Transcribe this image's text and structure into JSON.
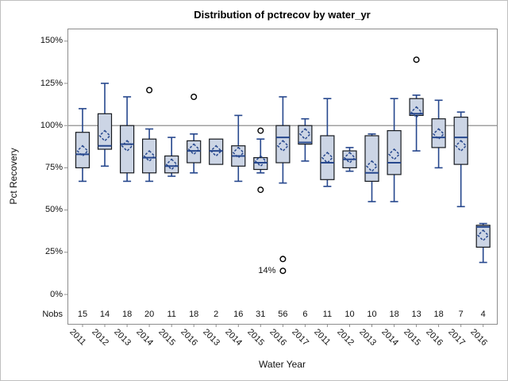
{
  "title": "Distribution of pctrecov by water_yr",
  "axes": {
    "y_label": "Pct Recovery",
    "x_label": "Water Year",
    "y_ticks": [
      "0%",
      "25%",
      "50%",
      "75%",
      "100%",
      "125%",
      "150%"
    ],
    "nobs_header": "Nobs"
  },
  "annotation_label": "14%",
  "colors": {
    "box_fill": "#ccd5e5",
    "box_border": "#16191e",
    "line_blue": "#26478d",
    "reference_line": "#a0a0a0",
    "frame_border": "#8d8d8d",
    "tick_color": "#8d8d8d",
    "outlier_stroke": "#000000"
  },
  "chart_data": {
    "type": "boxplot",
    "title": "Distribution of pctrecov by water_yr",
    "xlabel": "Water Year",
    "ylabel": "Pct Recovery",
    "ylim": [
      0,
      150
    ],
    "y_tick_values": [
      0,
      25,
      50,
      75,
      100,
      125,
      150
    ],
    "y_tick_labels": [
      "0%",
      "25%",
      "50%",
      "75%",
      "100%",
      "125%",
      "150%"
    ],
    "reference_line": 100,
    "grid": false,
    "categories": [
      "2011",
      "2012",
      "2013",
      "2014",
      "2015",
      "2016",
      "2013",
      "2014",
      "2015",
      "2016",
      "2017",
      "2011",
      "2012",
      "2013",
      "2014",
      "2015",
      "2016",
      "2017",
      "2016"
    ],
    "nobs": [
      15,
      14,
      18,
      20,
      11,
      18,
      2,
      16,
      31,
      56,
      6,
      11,
      10,
      10,
      18,
      13,
      18,
      7,
      4
    ],
    "boxes": [
      {
        "year": "2011",
        "nobs": 15,
        "low": 67,
        "q1": 75,
        "median": 83,
        "q3": 96,
        "high": 110,
        "mean": 85,
        "outliers": []
      },
      {
        "year": "2012",
        "nobs": 14,
        "low": 76,
        "q1": 86,
        "median": 88,
        "q3": 107,
        "high": 125,
        "mean": 94,
        "outliers": []
      },
      {
        "year": "2013",
        "nobs": 18,
        "low": 67,
        "q1": 72,
        "median": 89,
        "q3": 100,
        "high": 117,
        "mean": 88,
        "outliers": []
      },
      {
        "year": "2014",
        "nobs": 20,
        "low": 67,
        "q1": 72,
        "median": 81,
        "q3": 92,
        "high": 98,
        "mean": 82,
        "outliers": [
          121
        ]
      },
      {
        "year": "2015",
        "nobs": 11,
        "low": 70,
        "q1": 72,
        "median": 76,
        "q3": 82,
        "high": 93,
        "mean": 77,
        "outliers": []
      },
      {
        "year": "2016",
        "nobs": 18,
        "low": 72,
        "q1": 78,
        "median": 85,
        "q3": 91,
        "high": 95,
        "mean": 86,
        "outliers": [
          117
        ]
      },
      {
        "year": "2013",
        "nobs": 2,
        "low": 77,
        "q1": 77,
        "median": 85,
        "q3": 92,
        "high": 92,
        "mean": 85,
        "outliers": []
      },
      {
        "year": "2014",
        "nobs": 16,
        "low": 67,
        "q1": 76,
        "median": 82,
        "q3": 88,
        "high": 106,
        "mean": 84,
        "outliers": []
      },
      {
        "year": "2015",
        "nobs": 31,
        "low": 72,
        "q1": 74,
        "median": 78,
        "q3": 81,
        "high": 92,
        "mean": 79,
        "outliers": [
          97,
          62
        ]
      },
      {
        "year": "2016",
        "nobs": 56,
        "low": 66,
        "q1": 78,
        "median": 93,
        "q3": 100,
        "high": 117,
        "mean": 88,
        "outliers": [
          21,
          14
        ]
      },
      {
        "year": "2017",
        "nobs": 6,
        "low": 79,
        "q1": 89,
        "median": 90,
        "q3": 100,
        "high": 104,
        "mean": 95,
        "outliers": []
      },
      {
        "year": "2011",
        "nobs": 11,
        "low": 64,
        "q1": 68,
        "median": 78,
        "q3": 94,
        "high": 116,
        "mean": 81,
        "outliers": []
      },
      {
        "year": "2012",
        "nobs": 10,
        "low": 73,
        "q1": 75,
        "median": 80,
        "q3": 85,
        "high": 87,
        "mean": 81,
        "outliers": []
      },
      {
        "year": "2013",
        "nobs": 10,
        "low": 55,
        "q1": 67,
        "median": 72,
        "q3": 94,
        "high": 95,
        "mean": 76,
        "outliers": []
      },
      {
        "year": "2014",
        "nobs": 18,
        "low": 55,
        "q1": 71,
        "median": 78,
        "q3": 97,
        "high": 116,
        "mean": 83,
        "outliers": []
      },
      {
        "year": "2015",
        "nobs": 13,
        "low": 85,
        "q1": 106,
        "median": 107,
        "q3": 116,
        "high": 118,
        "mean": 108,
        "outliers": [
          139
        ]
      },
      {
        "year": "2016",
        "nobs": 18,
        "low": 75,
        "q1": 87,
        "median": 93,
        "q3": 104,
        "high": 115,
        "mean": 95,
        "outliers": []
      },
      {
        "year": "2017",
        "nobs": 7,
        "low": 52,
        "q1": 77,
        "median": 93,
        "q3": 105,
        "high": 108,
        "mean": 88,
        "outliers": []
      },
      {
        "year": "2016",
        "nobs": 4,
        "low": 19,
        "q1": 28,
        "median": 40,
        "q3": 41,
        "high": 42,
        "mean": 35,
        "outliers": []
      }
    ],
    "outlier_annotation": {
      "box_index": 9,
      "value": 14,
      "text": "14%"
    },
    "legend": "none"
  }
}
